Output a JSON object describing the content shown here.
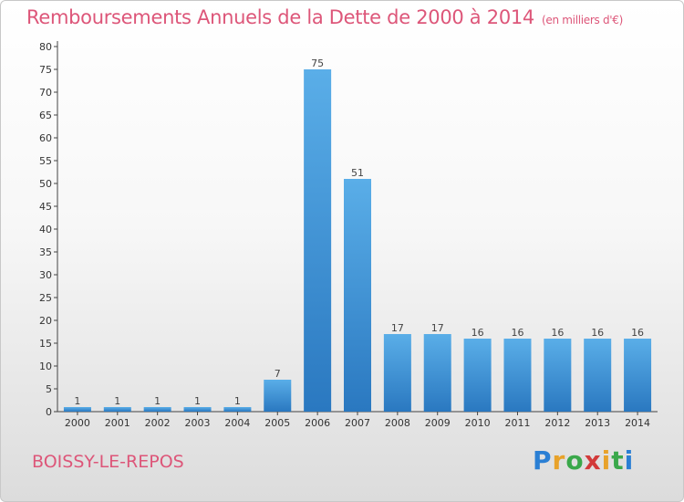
{
  "header": {
    "title": "Remboursements Annuels de la Dette de 2000 à 2014",
    "unit": "(en milliers d'€)"
  },
  "footer": {
    "city": "BOISSY-LE-REPOS",
    "logo_letters": [
      "P",
      "r",
      "o",
      "x",
      "i",
      "t",
      "i"
    ],
    "logo_colors": [
      "#2a7fd4",
      "#e8a22a",
      "#3aa84a",
      "#d23a3a",
      "#e8a22a",
      "#3aa84a",
      "#2a7fd4"
    ]
  },
  "chart_data": {
    "type": "bar",
    "categories": [
      "2000",
      "2001",
      "2002",
      "2003",
      "2004",
      "2005",
      "2006",
      "2007",
      "2008",
      "2009",
      "2010",
      "2011",
      "2012",
      "2013",
      "2014"
    ],
    "values": [
      1,
      1,
      1,
      1,
      1,
      7,
      75,
      51,
      17,
      17,
      16,
      16,
      16,
      16,
      16
    ],
    "title": "Remboursements Annuels de la Dette de 2000 à 2014",
    "xlabel": "",
    "ylabel": "",
    "ylim": [
      0,
      80
    ],
    "yticks": [
      0,
      5,
      10,
      15,
      20,
      25,
      30,
      35,
      40,
      45,
      50,
      55,
      60,
      65,
      70,
      75,
      80
    ],
    "grid": false,
    "bar_color_light": "#5aaee8",
    "bar_color_dark": "#2a78c0",
    "label_color": "#444444"
  }
}
